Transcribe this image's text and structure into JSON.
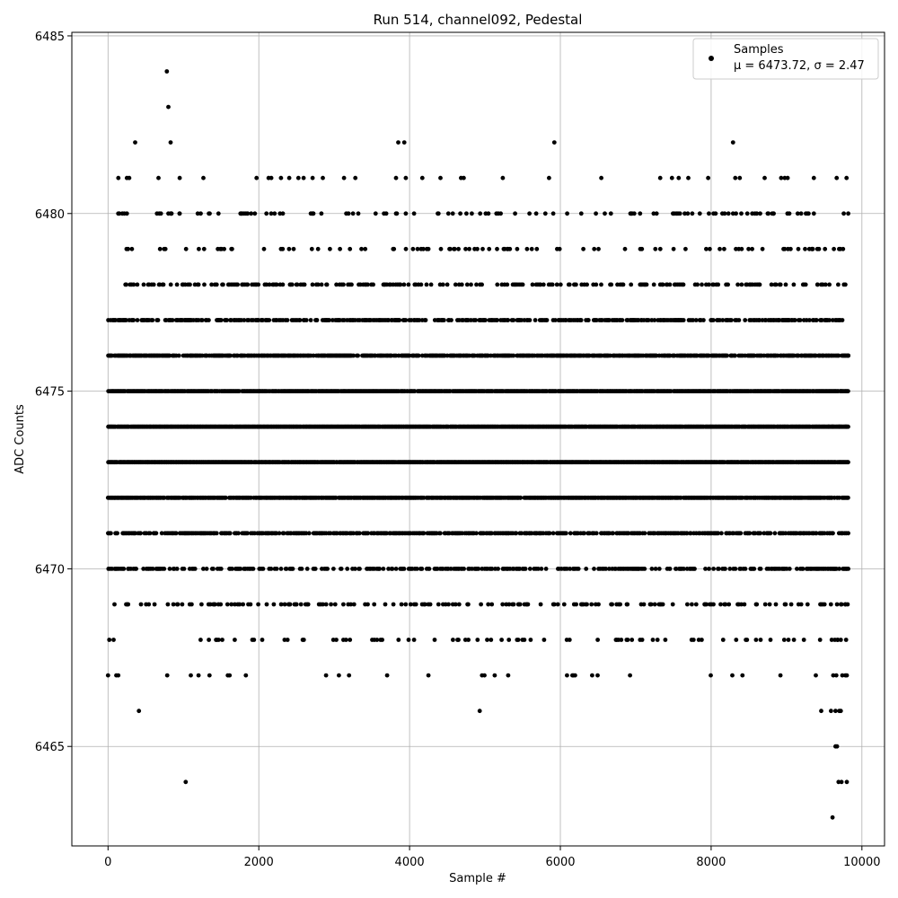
{
  "chart_data": {
    "type": "scatter",
    "title": "Run 514, channel092, Pedestal",
    "xlabel": "Sample #",
    "ylabel": "ADC Counts",
    "xlim": [
      -480,
      10300
    ],
    "ylim": [
      6462.2,
      6485.1
    ],
    "xticks": [
      0,
      2000,
      4000,
      6000,
      8000,
      10000
    ],
    "yticks": [
      6465,
      6470,
      6475,
      6480,
      6485
    ],
    "grid": true,
    "legend": {
      "placement": "top-right",
      "entries": [
        "Samples",
        "μ = 6473.72, σ = 2.47"
      ]
    },
    "series": [
      {
        "name": "Samples",
        "color": "#000000",
        "mean": 6473.72,
        "std": 2.47,
        "x_range": [
          0,
          9820
        ],
        "dense_levels": [
          6467,
          6468,
          6469,
          6470,
          6471,
          6472,
          6473,
          6474,
          6475,
          6476,
          6477,
          6478,
          6479,
          6480,
          6481
        ],
        "points": [
          [
            0,
            6467
          ],
          [
            110,
            6467
          ],
          [
            410,
            6466
          ],
          [
            4930,
            6466
          ],
          [
            1030,
            6464
          ],
          [
            9610,
            6463
          ],
          [
            9650,
            6465
          ],
          [
            9670,
            6465
          ],
          [
            9690,
            6464
          ],
          [
            9730,
            6464
          ],
          [
            9800,
            6464
          ],
          [
            9460,
            6466
          ],
          [
            9590,
            6466
          ],
          [
            9650,
            6466
          ],
          [
            9700,
            6466
          ],
          [
            9720,
            6466
          ],
          [
            780,
            6484
          ],
          [
            800,
            6483
          ],
          [
            830,
            6482
          ],
          [
            360,
            6482
          ],
          [
            3850,
            6482
          ],
          [
            3930,
            6482
          ],
          [
            5920,
            6482
          ],
          [
            8290,
            6482
          ],
          [
            250,
            6481
          ],
          [
            670,
            6481
          ],
          [
            950,
            6481
          ],
          [
            3130,
            6481
          ],
          [
            3280,
            6481
          ],
          [
            3950,
            6481
          ],
          [
            5850,
            6481
          ],
          [
            7480,
            6481
          ],
          [
            7570,
            6481
          ],
          [
            7960,
            6481
          ],
          [
            8320,
            6481
          ],
          [
            8380,
            6481
          ],
          [
            8710,
            6481
          ],
          [
            150,
            6480
          ],
          [
            190,
            6480
          ],
          [
            250,
            6480
          ],
          [
            680,
            6480
          ],
          [
            800,
            6480
          ],
          [
            840,
            6480
          ],
          [
            950,
            6480
          ],
          [
            1830,
            6480
          ],
          [
            2210,
            6480
          ],
          [
            2720,
            6480
          ],
          [
            2830,
            6480
          ],
          [
            3160,
            6480
          ],
          [
            3190,
            6480
          ],
          [
            3250,
            6480
          ],
          [
            3320,
            6480
          ],
          [
            3550,
            6480
          ],
          [
            3660,
            6480
          ],
          [
            3690,
            6480
          ],
          [
            3820,
            6480
          ],
          [
            3950,
            6480
          ],
          [
            5010,
            6480
          ],
          [
            5400,
            6480
          ],
          [
            5590,
            6480
          ],
          [
            5680,
            6480
          ],
          [
            6090,
            6480
          ],
          [
            6590,
            6480
          ],
          [
            6670,
            6480
          ],
          [
            6950,
            6480
          ],
          [
            6980,
            6480
          ],
          [
            7510,
            6480
          ],
          [
            7560,
            6480
          ],
          [
            7650,
            6480
          ],
          [
            7690,
            6480
          ],
          [
            7750,
            6480
          ],
          [
            7850,
            6480
          ],
          [
            7970,
            6480
          ],
          [
            8060,
            6480
          ],
          [
            8180,
            6480
          ],
          [
            8230,
            6480
          ],
          [
            8290,
            6480
          ],
          [
            8330,
            6480
          ],
          [
            8400,
            6480
          ],
          [
            8480,
            6480
          ],
          [
            8580,
            6480
          ],
          [
            8650,
            6480
          ],
          [
            8750,
            6480
          ],
          [
            8810,
            6480
          ],
          [
            8830,
            6480
          ],
          [
            9640,
            6470
          ],
          [
            9700,
            6470
          ],
          [
            9760,
            6470
          ],
          [
            9800,
            6470
          ],
          [
            9670,
            6469
          ],
          [
            9730,
            6469
          ],
          [
            9780,
            6469
          ],
          [
            9810,
            6469
          ],
          [
            9600,
            6468
          ],
          [
            9680,
            6468
          ],
          [
            9720,
            6468
          ],
          [
            9790,
            6468
          ],
          [
            9620,
            6467
          ],
          [
            9660,
            6467
          ],
          [
            9740,
            6467
          ],
          [
            9800,
            6467
          ],
          [
            9560,
            6474
          ],
          [
            9610,
            6474
          ],
          [
            9700,
            6474
          ],
          [
            9790,
            6474
          ],
          [
            9820,
            6476
          ],
          [
            9590,
            6476
          ],
          [
            9740,
            6477
          ],
          [
            9720,
            6475
          ],
          [
            9460,
            6478
          ],
          [
            9340,
            6479
          ],
          [
            9430,
            6479
          ],
          [
            9020,
            6479
          ],
          [
            8960,
            6479
          ],
          [
            9410,
            6478
          ]
        ]
      }
    ]
  }
}
